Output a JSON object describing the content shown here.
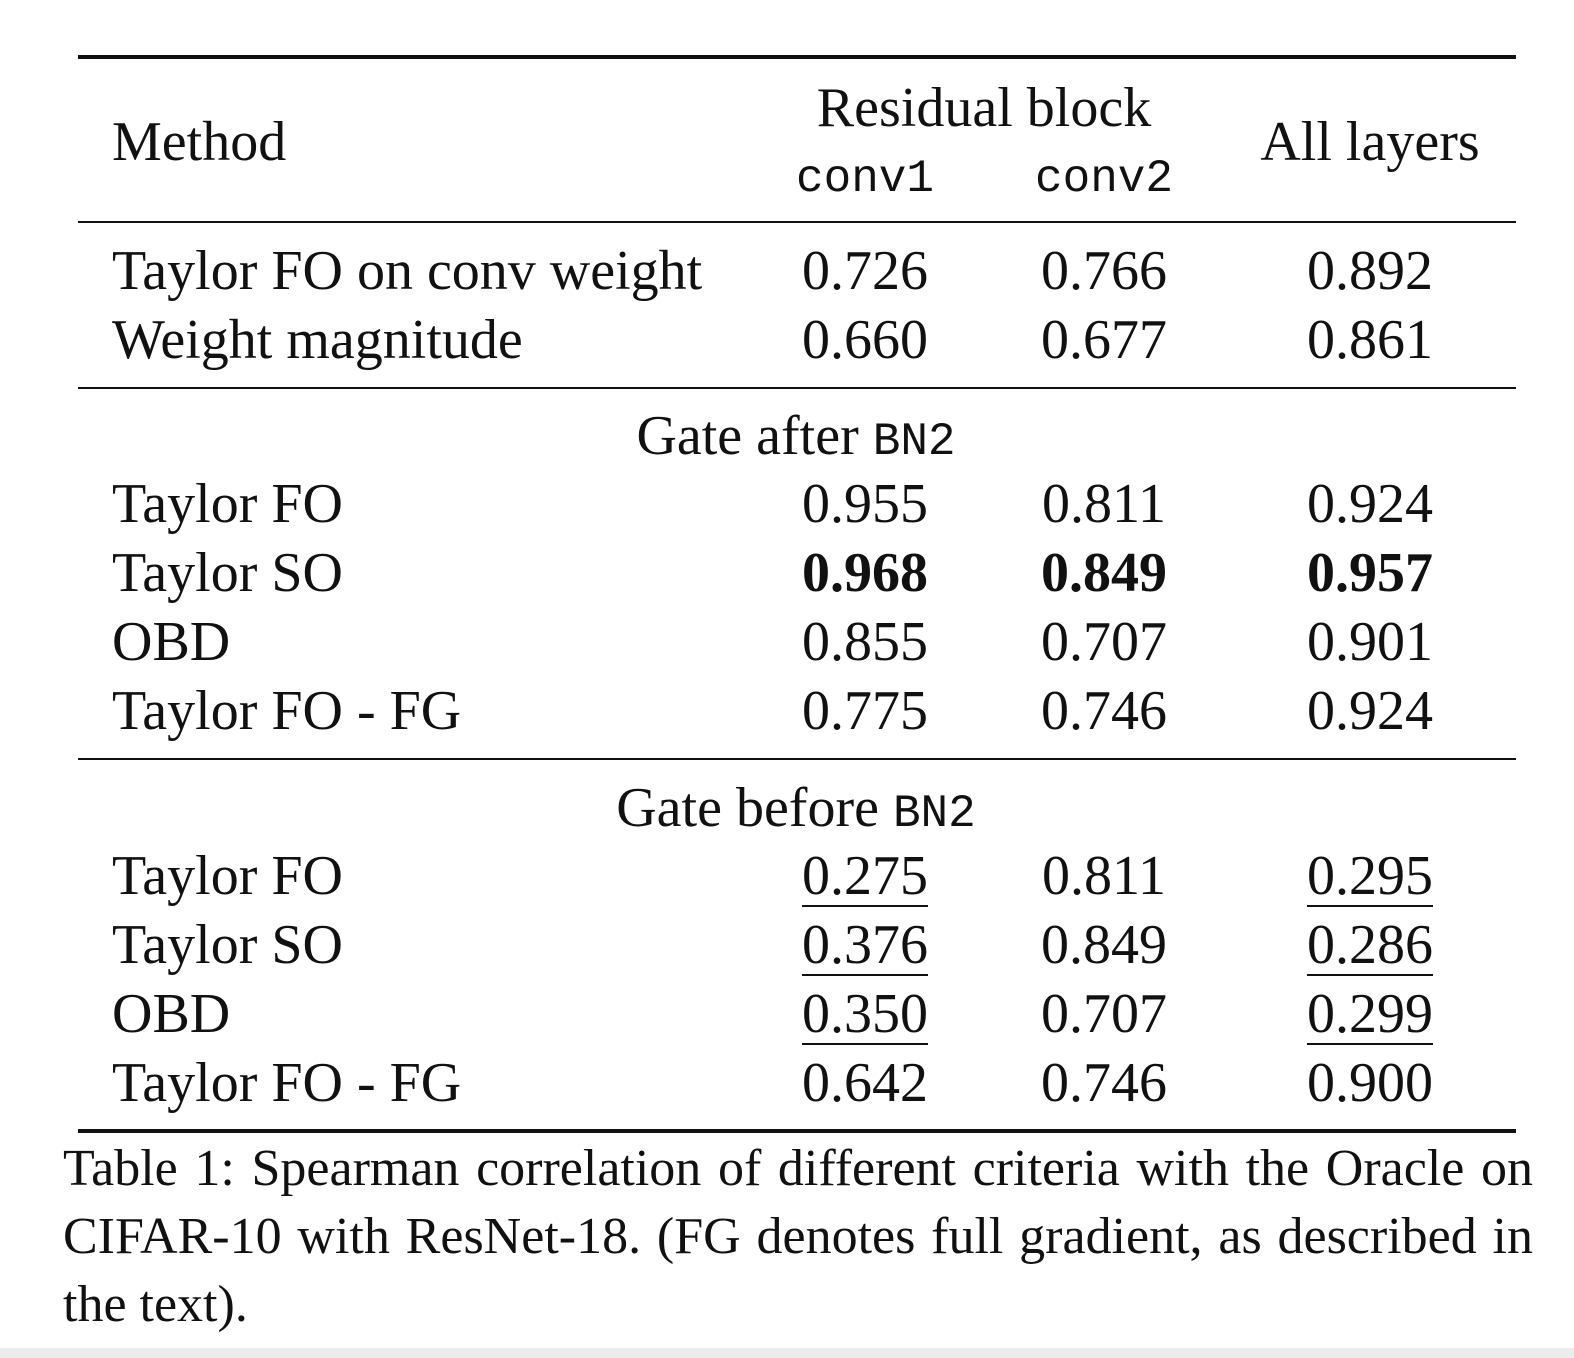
{
  "table": {
    "header": {
      "method": "Method",
      "group": "Residual block",
      "col1": "conv1",
      "col2": "conv2",
      "col3": "All layers"
    },
    "section1": {
      "rows": [
        {
          "method": "Taylor FO on conv weight",
          "conv1": "0.726",
          "conv2": "0.766",
          "all": "0.892"
        },
        {
          "method": "Weight magnitude",
          "conv1": "0.660",
          "conv2": "0.677",
          "all": "0.861"
        }
      ]
    },
    "section2": {
      "title_prefix": "Gate after",
      "title_code": "BN2",
      "rows": [
        {
          "method": "Taylor FO",
          "conv1": "0.955",
          "conv2": "0.811",
          "all": "0.924"
        },
        {
          "method": "Taylor SO",
          "conv1": "0.968",
          "conv2": "0.849",
          "all": "0.957"
        },
        {
          "method": "OBD",
          "conv1": "0.855",
          "conv2": "0.707",
          "all": "0.901"
        },
        {
          "method": "Taylor FO - FG",
          "conv1": "0.775",
          "conv2": "0.746",
          "all": "0.924"
        }
      ]
    },
    "section3": {
      "title_prefix": "Gate before",
      "title_code": "BN2",
      "rows": [
        {
          "method": "Taylor FO",
          "conv1": "0.275",
          "conv2": "0.811",
          "all": "0.295"
        },
        {
          "method": "Taylor SO",
          "conv1": "0.376",
          "conv2": "0.849",
          "all": "0.286"
        },
        {
          "method": "OBD",
          "conv1": "0.350",
          "conv2": "0.707",
          "all": "0.299"
        },
        {
          "method": "Taylor FO - FG",
          "conv1": "0.642",
          "conv2": "0.746",
          "all": "0.900"
        }
      ]
    }
  },
  "caption": "Table 1: Spearman correlation of different criteria with the Oracle on CIFAR-10 with ResNet-18. (FG denotes full gradient, as described in the text)."
}
